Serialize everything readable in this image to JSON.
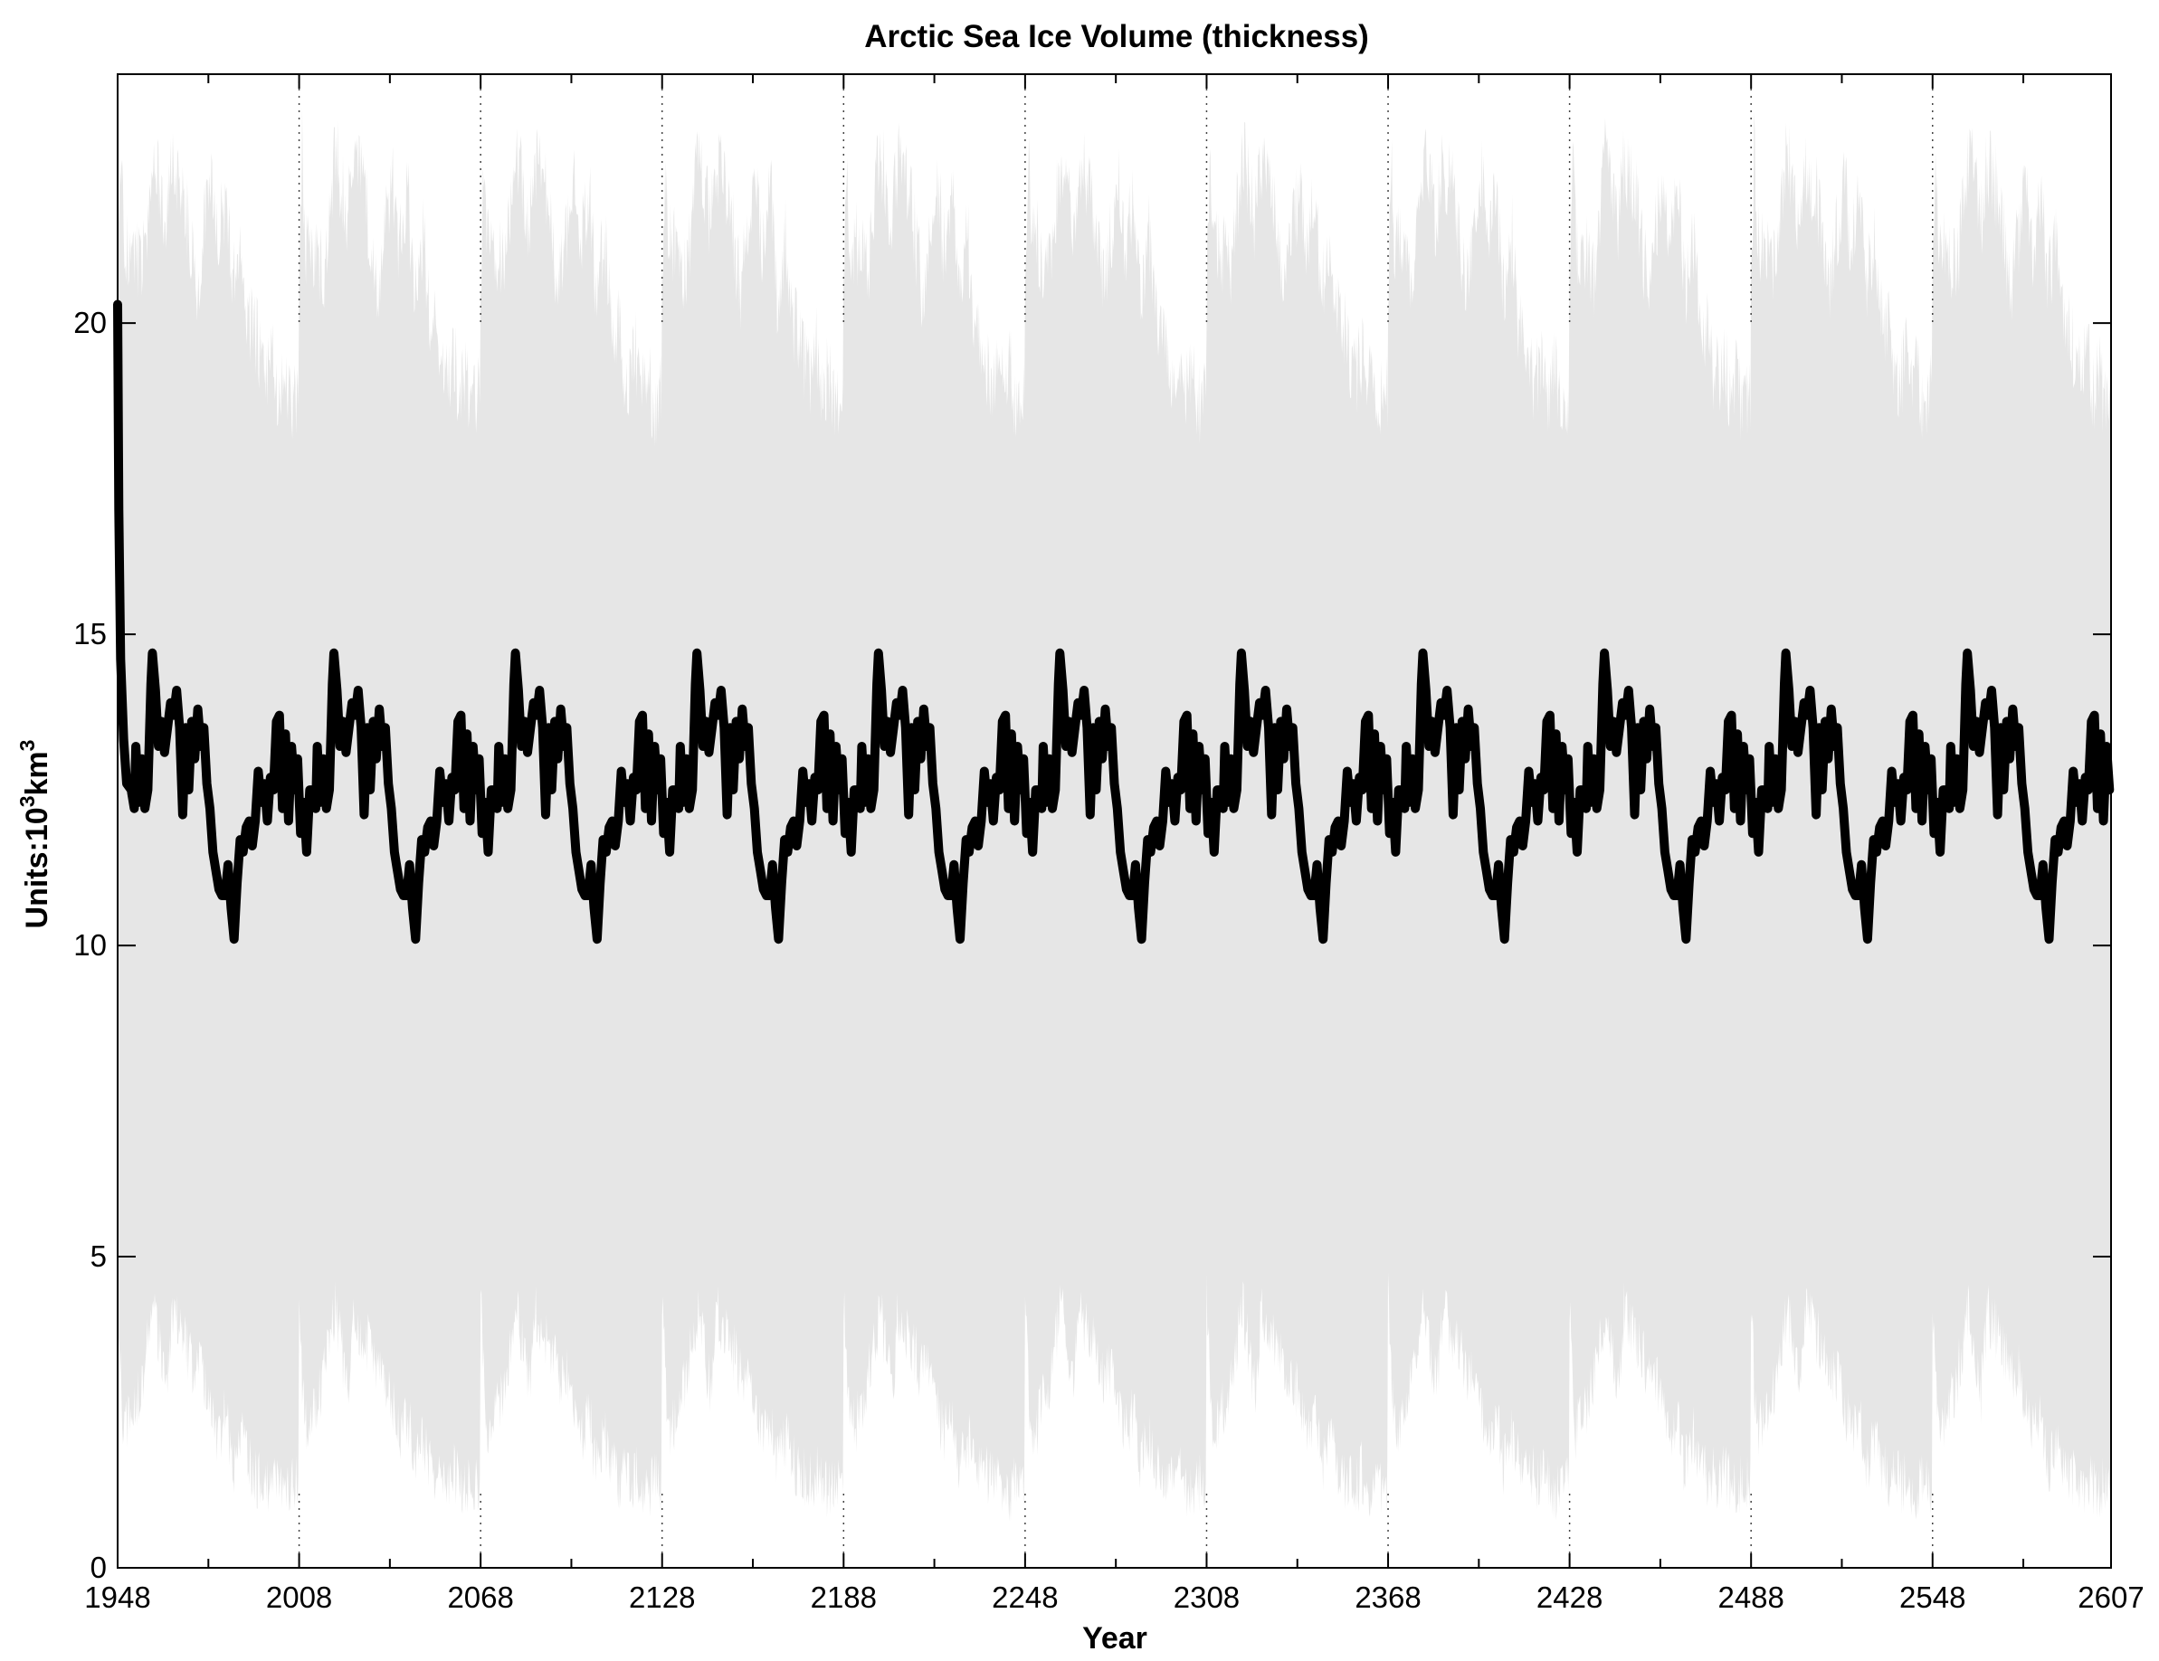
{
  "chart_data": {
    "type": "line",
    "title": "Arctic Sea Ice Volume (thickness)",
    "xlabel": "Year",
    "ylabel": {
      "prefix": "Units:10",
      "exp1": "3",
      "unit": "km",
      "exp2": "3"
    },
    "xlim": [
      1948,
      2607
    ],
    "ylim": [
      0,
      24
    ],
    "x_ticks": [
      {
        "value": 1948,
        "label": "1948"
      },
      {
        "value": 2008,
        "label": "2008"
      },
      {
        "value": 2068,
        "label": "2068"
      },
      {
        "value": 2128,
        "label": "2128"
      },
      {
        "value": 2188,
        "label": "2188"
      },
      {
        "value": 2248,
        "label": "2248"
      },
      {
        "value": 2308,
        "label": "2308"
      },
      {
        "value": 2368,
        "label": "2368"
      },
      {
        "value": 2428,
        "label": "2428"
      },
      {
        "value": 2488,
        "label": "2488"
      },
      {
        "value": 2548,
        "label": "2548"
      },
      {
        "value": 2607,
        "label": "2607"
      }
    ],
    "minor_x_ticks": [
      1978,
      2038,
      2098,
      2158,
      2218,
      2278,
      2338,
      2398,
      2458,
      2518,
      2578
    ],
    "y_ticks": [
      {
        "value": 0,
        "label": "0"
      },
      {
        "value": 5,
        "label": "5"
      },
      {
        "value": 10,
        "label": "10"
      },
      {
        "value": 15,
        "label": "15"
      },
      {
        "value": 20,
        "label": "20"
      }
    ],
    "grid": "dotted vertical lines above 20 at major x ticks",
    "colors": {
      "envelope": "#e6e6e6",
      "line": "#000000",
      "grid": "#444444",
      "axes": "#000000"
    },
    "cycle_years": 60,
    "series": [
      {
        "style": "grey envelope (monthly seasonal range, repeating 60-year cycle)",
        "upper_x": [
          0,
          1,
          2,
          4,
          8,
          12,
          16,
          18,
          22,
          26,
          28,
          31,
          33,
          36,
          38,
          41,
          43,
          46,
          48,
          50,
          51,
          53,
          55,
          57,
          59
        ],
        "upper_y": [
          21.3,
          23.5,
          22.0,
          22.0,
          21.5,
          23.5,
          22.3,
          23.3,
          22.7,
          21.2,
          22.0,
          23.0,
          21.9,
          22.8,
          21.2,
          22.1,
          20.8,
          20.5,
          19.8,
          19.9,
          20.3,
          19.5,
          20.0,
          19.3,
          19.6
        ],
        "lower_x": [
          0,
          1,
          2,
          4,
          8,
          12,
          16,
          18,
          22,
          26,
          28,
          31,
          33,
          36,
          38,
          41,
          43,
          46,
          48,
          50,
          51,
          53,
          55,
          57,
          59
        ],
        "lower_y": [
          3.8,
          2.6,
          1.7,
          1.8,
          2.5,
          3.7,
          2.3,
          3.6,
          3.2,
          2.6,
          2.7,
          2.1,
          1.6,
          2.0,
          1.1,
          1.6,
          1.2,
          0.9,
          1.0,
          0.8,
          1.1,
          0.8,
          0.7,
          0.9,
          0.8
        ]
      },
      {
        "style": "thick black line (smoothed volume)",
        "start_x": [
          1948.0,
          1948.4,
          1949.0,
          1950.0,
          1951.0,
          1952.5
        ],
        "start_y": [
          20.3,
          17.0,
          14.6,
          13.3,
          12.6,
          12.5
        ],
        "cycle_x": [
          0,
          1.0,
          1.5,
          2.5,
          3.5,
          4.5,
          5.5,
          6.5,
          7.0,
          8.0,
          9.0,
          10.0,
          11.0,
          12.0,
          13.0,
          14.0,
          15.0,
          16.0,
          17.0,
          18.0,
          19.0,
          20.0,
          21.0,
          22.0,
          23.0,
          24.0,
          25.0,
          26.0,
          27.0,
          28.0,
          29.0,
          30.0,
          31.0,
          32.0,
          33.0,
          34.0,
          35.0,
          36.0,
          37.0,
          38.0,
          39.0,
          40.0,
          41.0,
          42.0,
          43.0,
          44.0,
          45.0,
          46.0,
          47.0,
          48.0,
          49.0,
          50.0,
          51.0,
          52.0,
          53.0,
          54.0,
          55.0,
          56.0,
          57.0,
          58.0,
          59.0,
          60.0
        ],
        "cycle_y": [
          12.5,
          12.2,
          13.2,
          12.3,
          13.0,
          12.2,
          12.5,
          14.2,
          14.7,
          14.1,
          13.2,
          13.6,
          13.1,
          13.5,
          13.9,
          13.7,
          14.1,
          13.5,
          12.1,
          13.5,
          12.5,
          13.6,
          13.0,
          13.8,
          13.2,
          13.5,
          12.6,
          12.2,
          11.5,
          11.2,
          10.9,
          10.8,
          10.8,
          11.3,
          10.6,
          10.1,
          11.0,
          11.7,
          11.5,
          11.9,
          12.0,
          11.6,
          12.0,
          12.8,
          12.3,
          12.6,
          12.0,
          12.7,
          12.5,
          13.6,
          13.7,
          12.2,
          13.4,
          12.0,
          13.2,
          12.5,
          13.0,
          11.8,
          12.3,
          11.5,
          12.5,
          12.5
        ]
      }
    ]
  }
}
